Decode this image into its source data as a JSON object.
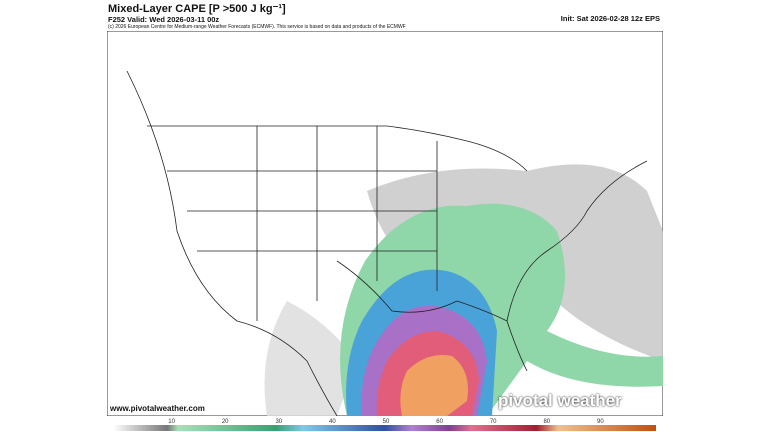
{
  "header": {
    "title": "Mixed-Layer CAPE [P >500 J kg⁻¹]",
    "valid": "F252 Valid: Wed 2026-03-11 00z",
    "credit": "(c) 2026 European Centre for Medium-range Weather Forecasts (ECMWF). This service is based on data and products of the ECMWF",
    "init": "Init: Sat 2026-02-28 12z EPS"
  },
  "map": {
    "website": "www.pivotalweather.com",
    "watermark": "pivotal weather"
  },
  "colorbar": {
    "ticks": [
      10,
      20,
      30,
      40,
      50,
      60,
      70,
      80,
      90
    ]
  }
}
